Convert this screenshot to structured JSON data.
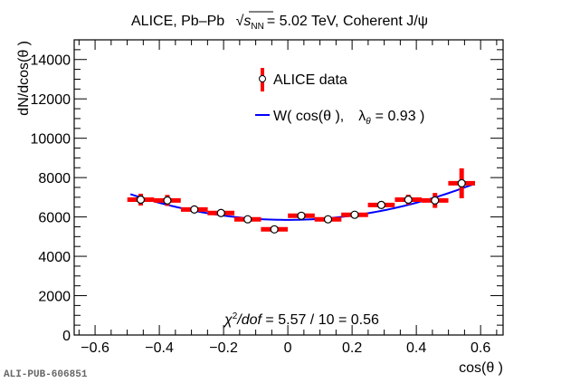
{
  "chart_data": {
    "type": "scatter",
    "title": {
      "prefix": "ALICE, Pb–Pb",
      "sqrt_s": "s",
      "sqrt_sub": "NN",
      "suffix": "= 5.02 TeV, Coherent J/ψ"
    },
    "xlabel": "cos(θ )",
    "ylabel": "dN/dcos(θ )",
    "xlim": [
      -0.665,
      0.67
    ],
    "ylim": [
      0,
      15000
    ],
    "xticks": [
      -0.6,
      -0.4,
      -0.2,
      0,
      0.2,
      0.4,
      0.6
    ],
    "xtick_labels": [
      "−0.6",
      "−0.4",
      "−0.2",
      "0",
      "0.2",
      "0.4",
      "0.6"
    ],
    "yticks": [
      0,
      2000,
      4000,
      6000,
      8000,
      10000,
      12000,
      14000
    ],
    "ytick_labels": [
      "0",
      "2000",
      "4000",
      "6000",
      "8000",
      "10000",
      "12000",
      "14000"
    ],
    "series": [
      {
        "name": "ALICE data",
        "type": "points",
        "color": "#ff0000",
        "x": [
          -0.458,
          -0.375,
          -0.291,
          -0.208,
          -0.125,
          -0.042,
          0.042,
          0.125,
          0.208,
          0.291,
          0.375,
          0.458,
          0.541
        ],
        "x_err": 0.0417,
        "y": [
          6880,
          6840,
          6380,
          6200,
          5880,
          5370,
          6060,
          5880,
          6110,
          6610,
          6880,
          6840,
          7710
        ],
        "y_err": [
          300,
          280,
          150,
          120,
          110,
          100,
          110,
          110,
          120,
          180,
          250,
          380,
          760
        ]
      },
      {
        "name": "W( cos(θ ),   λθ = 0.93 )",
        "type": "line",
        "color": "#0000ff",
        "function": "A*(1+lambda*x^2)",
        "A": 5850,
        "lambda": 0.93,
        "x_range": [
          -0.49,
          0.575
        ]
      }
    ],
    "legend": {
      "position": "top-center",
      "data_label": "ALICE data",
      "fit_label_prefix": "W( cos(θ ),",
      "fit_label_lambda": "λ",
      "fit_label_sub": "θ",
      "fit_label_suffix": "= 0.93 )"
    },
    "annotation": {
      "chi": "χ",
      "chi_sup": "2",
      "dof": "/dof",
      "rest": " = 5.57 / 10 = 0.56"
    },
    "grid": false
  },
  "footer": {
    "pub_id": "ALI-PUB-606851"
  },
  "colors": {
    "data": "#ff0000",
    "fit": "#0000ff",
    "axis": "#000000"
  }
}
